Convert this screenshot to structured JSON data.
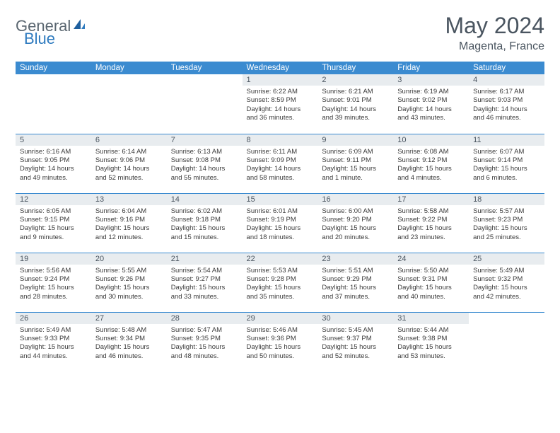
{
  "logo": {
    "part1": "General",
    "part2": "Blue"
  },
  "title": "May 2024",
  "location": "Magenta, France",
  "colors": {
    "header_bg": "#3b8bd0",
    "header_text": "#ffffff",
    "daynum_bg": "#e8ecef",
    "text_gray": "#4a5560",
    "brand_gray": "#5a6670",
    "brand_blue": "#2f7bbf",
    "row_border": "#3b8bd0"
  },
  "typography": {
    "title_fontsize": 32,
    "location_fontsize": 16,
    "dayhead_fontsize": 11.5,
    "daynum_fontsize": 11,
    "detail_fontsize": 9.5
  },
  "day_headers": [
    "Sunday",
    "Monday",
    "Tuesday",
    "Wednesday",
    "Thursday",
    "Friday",
    "Saturday"
  ],
  "weeks": [
    [
      {
        "n": "",
        "sr": "",
        "ss": "",
        "dl": ""
      },
      {
        "n": "",
        "sr": "",
        "ss": "",
        "dl": ""
      },
      {
        "n": "",
        "sr": "",
        "ss": "",
        "dl": ""
      },
      {
        "n": "1",
        "sr": "Sunrise: 6:22 AM",
        "ss": "Sunset: 8:59 PM",
        "dl": "Daylight: 14 hours and 36 minutes."
      },
      {
        "n": "2",
        "sr": "Sunrise: 6:21 AM",
        "ss": "Sunset: 9:01 PM",
        "dl": "Daylight: 14 hours and 39 minutes."
      },
      {
        "n": "3",
        "sr": "Sunrise: 6:19 AM",
        "ss": "Sunset: 9:02 PM",
        "dl": "Daylight: 14 hours and 43 minutes."
      },
      {
        "n": "4",
        "sr": "Sunrise: 6:17 AM",
        "ss": "Sunset: 9:03 PM",
        "dl": "Daylight: 14 hours and 46 minutes."
      }
    ],
    [
      {
        "n": "5",
        "sr": "Sunrise: 6:16 AM",
        "ss": "Sunset: 9:05 PM",
        "dl": "Daylight: 14 hours and 49 minutes."
      },
      {
        "n": "6",
        "sr": "Sunrise: 6:14 AM",
        "ss": "Sunset: 9:06 PM",
        "dl": "Daylight: 14 hours and 52 minutes."
      },
      {
        "n": "7",
        "sr": "Sunrise: 6:13 AM",
        "ss": "Sunset: 9:08 PM",
        "dl": "Daylight: 14 hours and 55 minutes."
      },
      {
        "n": "8",
        "sr": "Sunrise: 6:11 AM",
        "ss": "Sunset: 9:09 PM",
        "dl": "Daylight: 14 hours and 58 minutes."
      },
      {
        "n": "9",
        "sr": "Sunrise: 6:09 AM",
        "ss": "Sunset: 9:11 PM",
        "dl": "Daylight: 15 hours and 1 minute."
      },
      {
        "n": "10",
        "sr": "Sunrise: 6:08 AM",
        "ss": "Sunset: 9:12 PM",
        "dl": "Daylight: 15 hours and 4 minutes."
      },
      {
        "n": "11",
        "sr": "Sunrise: 6:07 AM",
        "ss": "Sunset: 9:14 PM",
        "dl": "Daylight: 15 hours and 6 minutes."
      }
    ],
    [
      {
        "n": "12",
        "sr": "Sunrise: 6:05 AM",
        "ss": "Sunset: 9:15 PM",
        "dl": "Daylight: 15 hours and 9 minutes."
      },
      {
        "n": "13",
        "sr": "Sunrise: 6:04 AM",
        "ss": "Sunset: 9:16 PM",
        "dl": "Daylight: 15 hours and 12 minutes."
      },
      {
        "n": "14",
        "sr": "Sunrise: 6:02 AM",
        "ss": "Sunset: 9:18 PM",
        "dl": "Daylight: 15 hours and 15 minutes."
      },
      {
        "n": "15",
        "sr": "Sunrise: 6:01 AM",
        "ss": "Sunset: 9:19 PM",
        "dl": "Daylight: 15 hours and 18 minutes."
      },
      {
        "n": "16",
        "sr": "Sunrise: 6:00 AM",
        "ss": "Sunset: 9:20 PM",
        "dl": "Daylight: 15 hours and 20 minutes."
      },
      {
        "n": "17",
        "sr": "Sunrise: 5:58 AM",
        "ss": "Sunset: 9:22 PM",
        "dl": "Daylight: 15 hours and 23 minutes."
      },
      {
        "n": "18",
        "sr": "Sunrise: 5:57 AM",
        "ss": "Sunset: 9:23 PM",
        "dl": "Daylight: 15 hours and 25 minutes."
      }
    ],
    [
      {
        "n": "19",
        "sr": "Sunrise: 5:56 AM",
        "ss": "Sunset: 9:24 PM",
        "dl": "Daylight: 15 hours and 28 minutes."
      },
      {
        "n": "20",
        "sr": "Sunrise: 5:55 AM",
        "ss": "Sunset: 9:26 PM",
        "dl": "Daylight: 15 hours and 30 minutes."
      },
      {
        "n": "21",
        "sr": "Sunrise: 5:54 AM",
        "ss": "Sunset: 9:27 PM",
        "dl": "Daylight: 15 hours and 33 minutes."
      },
      {
        "n": "22",
        "sr": "Sunrise: 5:53 AM",
        "ss": "Sunset: 9:28 PM",
        "dl": "Daylight: 15 hours and 35 minutes."
      },
      {
        "n": "23",
        "sr": "Sunrise: 5:51 AM",
        "ss": "Sunset: 9:29 PM",
        "dl": "Daylight: 15 hours and 37 minutes."
      },
      {
        "n": "24",
        "sr": "Sunrise: 5:50 AM",
        "ss": "Sunset: 9:31 PM",
        "dl": "Daylight: 15 hours and 40 minutes."
      },
      {
        "n": "25",
        "sr": "Sunrise: 5:49 AM",
        "ss": "Sunset: 9:32 PM",
        "dl": "Daylight: 15 hours and 42 minutes."
      }
    ],
    [
      {
        "n": "26",
        "sr": "Sunrise: 5:49 AM",
        "ss": "Sunset: 9:33 PM",
        "dl": "Daylight: 15 hours and 44 minutes."
      },
      {
        "n": "27",
        "sr": "Sunrise: 5:48 AM",
        "ss": "Sunset: 9:34 PM",
        "dl": "Daylight: 15 hours and 46 minutes."
      },
      {
        "n": "28",
        "sr": "Sunrise: 5:47 AM",
        "ss": "Sunset: 9:35 PM",
        "dl": "Daylight: 15 hours and 48 minutes."
      },
      {
        "n": "29",
        "sr": "Sunrise: 5:46 AM",
        "ss": "Sunset: 9:36 PM",
        "dl": "Daylight: 15 hours and 50 minutes."
      },
      {
        "n": "30",
        "sr": "Sunrise: 5:45 AM",
        "ss": "Sunset: 9:37 PM",
        "dl": "Daylight: 15 hours and 52 minutes."
      },
      {
        "n": "31",
        "sr": "Sunrise: 5:44 AM",
        "ss": "Sunset: 9:38 PM",
        "dl": "Daylight: 15 hours and 53 minutes."
      },
      {
        "n": "",
        "sr": "",
        "ss": "",
        "dl": ""
      }
    ]
  ]
}
